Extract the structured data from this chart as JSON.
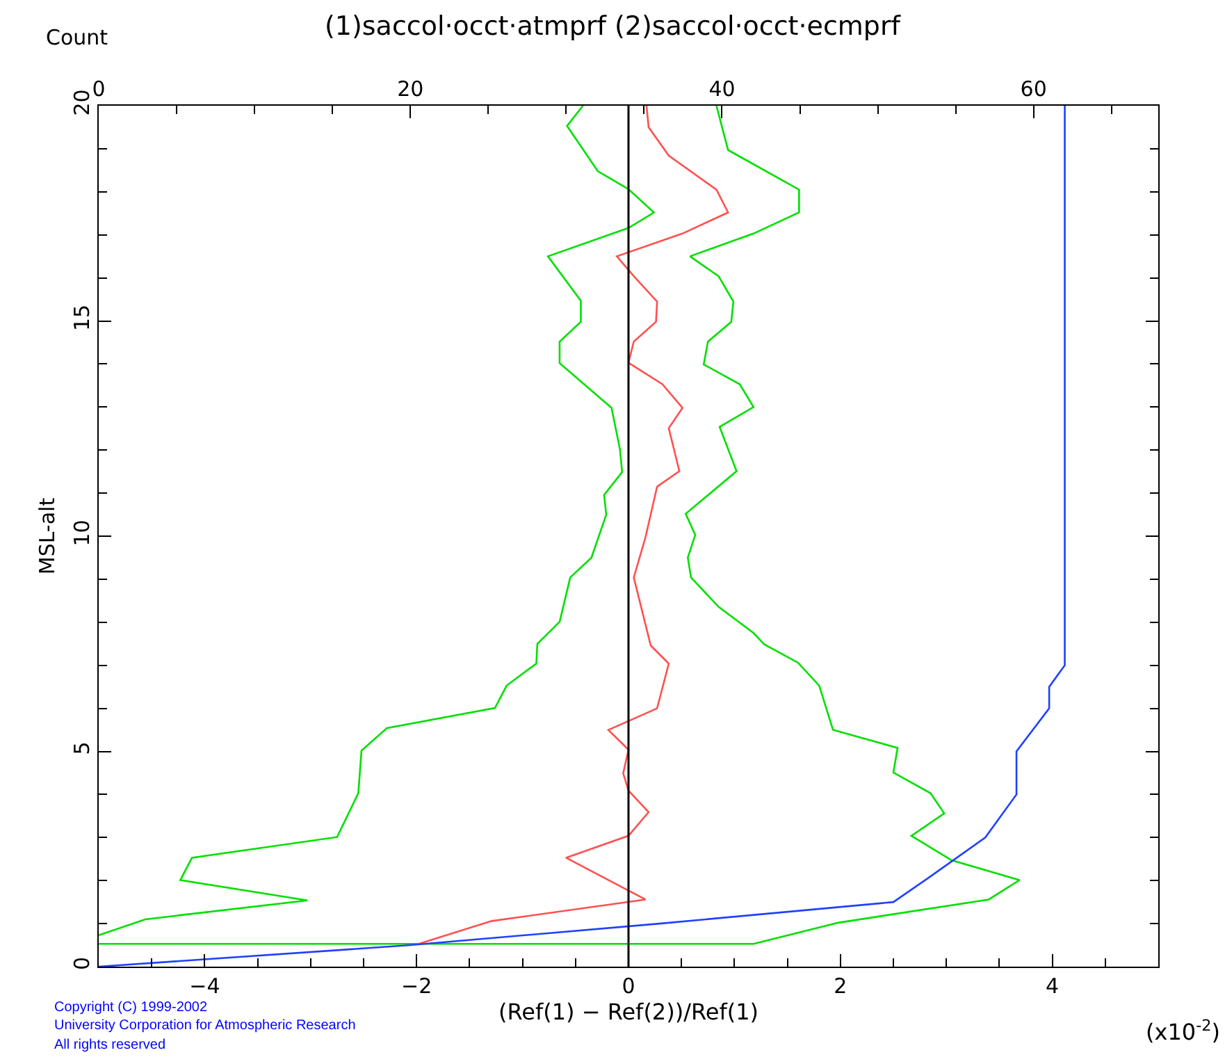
{
  "chart_data": {
    "type": "line",
    "title": "(1)saccol·occt·atmprf (2)saccol·occt·ecmprf",
    "xlabel": "(Ref(1) − Ref(2))/Ref(1)",
    "ylabel": "MSL-alt",
    "x2label": "Count",
    "xlim": [
      -5,
      5
    ],
    "xticks": [
      -4,
      -2,
      0,
      2,
      4
    ],
    "x2lim": [
      0,
      68
    ],
    "x2ticks": [
      0,
      20,
      40,
      60
    ],
    "ylim": [
      0,
      20
    ],
    "yticks": [
      0,
      5,
      10,
      15,
      20
    ],
    "line_style": "solid",
    "marker": "none",
    "ref_lines": [
      {
        "axis": "x",
        "value": 0,
        "color": "#000000"
      }
    ],
    "annotations": [
      "(x10$^{-2}$)",
      "Copyright (C) 1999-2002",
      "University Corporation for Atmospheric Research",
      "All rights reserved"
    ],
    "series": [
      {
        "color": "#00e000",
        "x": [
          -5.0,
          -4.56,
          -3.03,
          -4.23,
          -4.12,
          -2.75,
          -2.55,
          -2.52,
          -2.28,
          -1.26,
          -1.15,
          -0.87,
          -0.86,
          -0.65,
          -0.55,
          -0.35,
          -0.21,
          -0.23,
          -0.06,
          -0.08,
          -0.16,
          -0.65,
          -0.65,
          -0.45,
          -0.45,
          -0.76,
          0,
          0.24,
          0,
          -0.29,
          -0.58,
          -0.43
        ],
        "values": [
          0.73,
          1.1,
          1.54,
          2.01,
          2.53,
          3.01,
          4.03,
          5.02,
          5.54,
          6.01,
          6.53,
          7.04,
          7.5,
          8.01,
          9.04,
          9.5,
          10.5,
          10.96,
          11.49,
          12.01,
          12.98,
          14.02,
          14.52,
          14.98,
          15.47,
          16.5,
          17.16,
          17.52,
          18.06,
          18.48,
          19.53,
          20
        ]
      },
      {
        "color": "#00e000",
        "x": [
          -5.0,
          1.18,
          1.98,
          3.4,
          3.69,
          3.05,
          2.67,
          2.98,
          2.85,
          2.5,
          2.54,
          1.93,
          1.8,
          1.6,
          1.28,
          1.18,
          0.85,
          0.59,
          0.56,
          0.63,
          0.54,
          1.02,
          0.86,
          1.18,
          1.05,
          0.71,
          0.75,
          0.97,
          0.99,
          0.85,
          0.58,
          1.18,
          1.61,
          1.61,
          0.94,
          0.83
        ],
        "values": [
          0.53,
          0.53,
          1.02,
          1.56,
          2.01,
          2.47,
          3.04,
          3.56,
          4.03,
          4.51,
          5.08,
          5.5,
          6.53,
          7.06,
          7.49,
          7.75,
          8.36,
          9.04,
          9.5,
          10.03,
          10.52,
          11.51,
          12.54,
          13.0,
          13.53,
          13.99,
          14.52,
          14.98,
          15.45,
          16.04,
          16.5,
          17.03,
          17.52,
          18.05,
          18.97,
          20
        ]
      },
      {
        "color": "#ff5050",
        "x": [
          -1.98,
          -1.29,
          0.16,
          -0.59,
          0,
          0.19,
          0,
          -0.05,
          0,
          -0.19,
          0.27,
          0.38,
          0.21,
          0.05,
          0.16,
          0.27,
          0.48,
          0.38,
          0.51,
          0.32,
          0,
          0.05,
          0.26,
          0.27,
          0.05,
          -0.11,
          0.51,
          0.94,
          0.83,
          0.38,
          0.19,
          0.17
        ],
        "values": [
          0.53,
          1.06,
          1.56,
          2.53,
          3.04,
          3.59,
          4.09,
          4.49,
          5.04,
          5.5,
          6.0,
          7.04,
          7.46,
          9.04,
          9.97,
          11.15,
          11.51,
          12.51,
          12.98,
          13.53,
          14.03,
          14.52,
          14.98,
          15.45,
          16.04,
          16.5,
          17.03,
          17.52,
          18.05,
          18.84,
          19.5,
          20
        ]
      },
      {
        "color": "#2040ff",
        "axis": "x2",
        "x": [
          0,
          20,
          36,
          51,
          53.2,
          56.9,
          58.9,
          58.9,
          61,
          61,
          62,
          62
        ],
        "values": [
          0,
          0.5,
          1.0,
          1.5,
          2.05,
          3.0,
          4.0,
          5.0,
          6.0,
          6.5,
          7.0,
          20
        ]
      }
    ]
  }
}
